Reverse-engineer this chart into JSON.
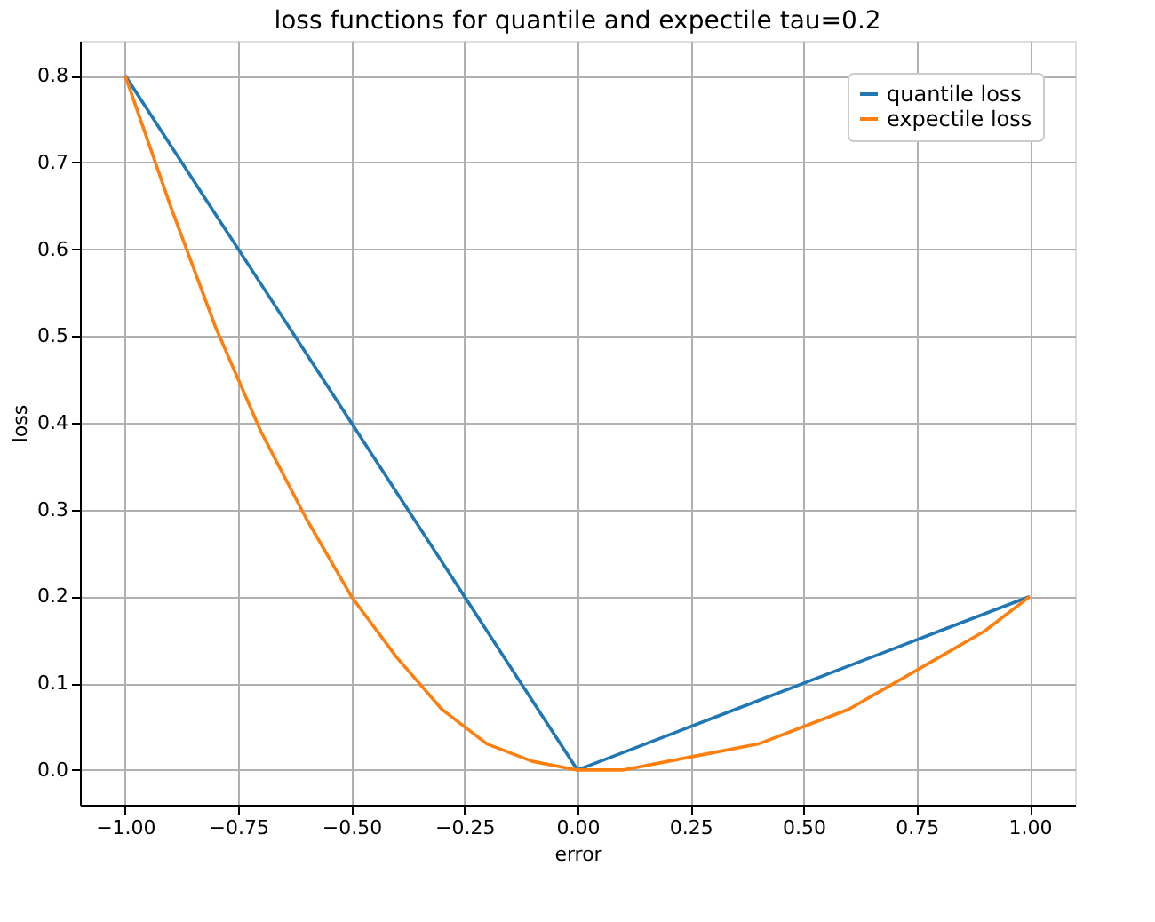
{
  "chart_data": {
    "type": "line",
    "title": "loss functions for quantile and expectile tau=0.2",
    "xlabel": "error",
    "ylabel": "loss",
    "x": [
      -1.0,
      -0.9,
      -0.8,
      -0.7,
      -0.6,
      -0.5,
      -0.4,
      -0.3,
      -0.2,
      -0.1,
      0.0,
      0.1,
      0.2,
      0.3,
      0.4,
      0.5,
      0.6,
      0.7,
      0.8,
      0.9,
      1.0
    ],
    "series": [
      {
        "name": "quantile loss",
        "color": "#1f77b4",
        "values": [
          0.8,
          0.72,
          0.64,
          0.56,
          0.48,
          0.4,
          0.32,
          0.24,
          0.16,
          0.08,
          0.0,
          0.02,
          0.04,
          0.06,
          0.08,
          0.1,
          0.12,
          0.14,
          0.16,
          0.18,
          0.2
        ]
      },
      {
        "name": "expectile loss",
        "color": "#ff7f0e",
        "values": [
          0.8,
          0.65,
          0.51,
          0.39,
          0.29,
          0.2,
          0.13,
          0.07,
          0.03,
          0.01,
          0.0,
          0.0,
          0.01,
          0.02,
          0.03,
          0.05,
          0.07,
          0.1,
          0.13,
          0.16,
          0.2
        ]
      }
    ],
    "xlim": [
      -1.1,
      1.1
    ],
    "ylim": [
      -0.04,
      0.84
    ],
    "xticks": [
      {
        "value": -1.0,
        "label": "−1.00"
      },
      {
        "value": -0.75,
        "label": "−0.75"
      },
      {
        "value": -0.5,
        "label": "−0.50"
      },
      {
        "value": -0.25,
        "label": "−0.25"
      },
      {
        "value": 0.0,
        "label": "0.00"
      },
      {
        "value": 0.25,
        "label": "0.25"
      },
      {
        "value": 0.5,
        "label": "0.50"
      },
      {
        "value": 0.75,
        "label": "0.75"
      },
      {
        "value": 1.0,
        "label": "1.00"
      }
    ],
    "yticks": [
      {
        "value": 0.0,
        "label": "0.0"
      },
      {
        "value": 0.1,
        "label": "0.1"
      },
      {
        "value": 0.2,
        "label": "0.2"
      },
      {
        "value": 0.3,
        "label": "0.3"
      },
      {
        "value": 0.4,
        "label": "0.4"
      },
      {
        "value": 0.5,
        "label": "0.5"
      },
      {
        "value": 0.6,
        "label": "0.6"
      },
      {
        "value": 0.7,
        "label": "0.7"
      },
      {
        "value": 0.8,
        "label": "0.8"
      }
    ],
    "grid": true,
    "legend": "top right",
    "marker": "none",
    "line_style": "solid"
  }
}
